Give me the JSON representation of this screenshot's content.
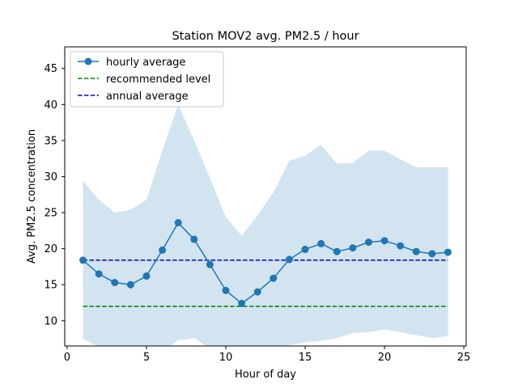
{
  "chart_data": {
    "type": "line",
    "title": "Station MOV2 avg. PM2.5 / hour",
    "xlabel": "Hour of day",
    "ylabel": "Avg. PM2.5 concentration",
    "xlim": [
      -0.15,
      25.15
    ],
    "ylim": [
      6.5,
      48
    ],
    "xticks": [
      0,
      5,
      10,
      15,
      20,
      25
    ],
    "yticks": [
      10,
      15,
      20,
      25,
      30,
      35,
      40,
      45
    ],
    "grid": false,
    "legend_position": "top-left",
    "x": [
      1,
      2,
      3,
      4,
      5,
      6,
      7,
      8,
      9,
      10,
      11,
      12,
      13,
      14,
      15,
      16,
      17,
      18,
      19,
      20,
      21,
      22,
      23,
      24
    ],
    "series": [
      {
        "name": "hourly average",
        "style": "line-with-markers",
        "color": "#1f77b4",
        "values": [
          18.4,
          16.5,
          15.3,
          15.0,
          16.2,
          19.8,
          23.6,
          21.3,
          17.8,
          14.2,
          12.4,
          14.0,
          15.9,
          18.5,
          19.9,
          20.7,
          19.6,
          20.1,
          20.9,
          21.1,
          20.4,
          19.6,
          19.3,
          19.5
        ]
      },
      {
        "name": "recommended level",
        "style": "dashed",
        "color": "#008000",
        "values": [
          12,
          12,
          12,
          12,
          12,
          12,
          12,
          12,
          12,
          12,
          12,
          12,
          12,
          12,
          12,
          12,
          12,
          12,
          12,
          12,
          12,
          12,
          12,
          12
        ]
      },
      {
        "name": "annual average",
        "style": "dashed",
        "color": "#0000cd",
        "values": [
          18.4,
          18.4,
          18.4,
          18.4,
          18.4,
          18.4,
          18.4,
          18.4,
          18.4,
          18.4,
          18.4,
          18.4,
          18.4,
          18.4,
          18.4,
          18.4,
          18.4,
          18.4,
          18.4,
          18.4,
          18.4,
          18.4,
          18.4,
          18.4
        ]
      }
    ],
    "band": {
      "color": "#1f77b4",
      "opacity": 0.2,
      "upper": [
        29.4,
        26.8,
        25.0,
        25.4,
        26.8,
        33.6,
        40.0,
        35.0,
        29.8,
        24.4,
        21.8,
        24.6,
        27.8,
        32.2,
        32.9,
        34.4,
        31.8,
        31.9,
        33.6,
        33.6,
        32.4,
        31.3,
        31.3,
        31.3
      ],
      "lower": [
        7.5,
        6.4,
        5.6,
        5.4,
        5.0,
        5.8,
        7.3,
        7.6,
        6.2,
        4.4,
        3.6,
        4.4,
        5.5,
        6.6,
        7.0,
        7.2,
        7.6,
        8.3,
        8.4,
        8.8,
        8.4,
        8.0,
        7.6,
        7.9
      ]
    }
  }
}
